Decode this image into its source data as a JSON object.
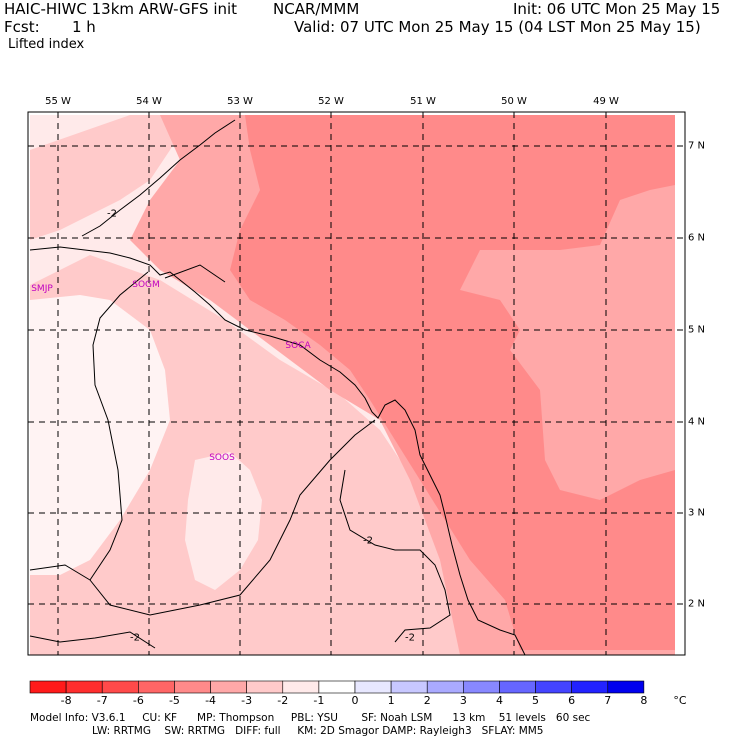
{
  "header": {
    "title": "HAIC-HIWC 13km ARW-GFS init",
    "org": "NCAR/MMM",
    "init": "Init: 06 UTC Mon 25 May 15",
    "fcst_label": "Fcst:",
    "fcst_value": "1 h",
    "valid": "Valid: 07 UTC Mon 25 May 15 (04 LST Mon 25 May 15)",
    "field": "Lifted index"
  },
  "map": {
    "lon_labels": [
      "55 W",
      "54 W",
      "53 W",
      "52 W",
      "51 W",
      "50 W",
      "49 W"
    ],
    "lat_labels": [
      "7 N",
      "6 N",
      "5 N",
      "4 N",
      "3 N",
      "2 N"
    ],
    "stations": [
      "SMJP",
      "SOGM",
      "SOCA",
      "SOOS"
    ],
    "contour_labels": [
      "-2",
      "-2",
      "-2",
      "-2"
    ],
    "colors": {
      "li_minus4": "#ff8a8a",
      "li_minus3": "#ffa8a8",
      "li_minus2": "#ffcaca",
      "li_minus1": "#ffeaea",
      "station_text": "#c000c0"
    }
  },
  "colorbar": {
    "labels": [
      "-8",
      "-7",
      "-6",
      "-5",
      "-4",
      "-3",
      "-2",
      "-1",
      "0",
      "1",
      "2",
      "3",
      "4",
      "5",
      "6",
      "7",
      "8"
    ],
    "unit": "°C",
    "colors": [
      "#ff1a1a",
      "#ff2e2e",
      "#ff4a4a",
      "#ff6666",
      "#ff8a8a",
      "#ffa8a8",
      "#ffcaca",
      "#ffeaea",
      "#ffffff",
      "#e8e8ff",
      "#c8c8ff",
      "#aaaaff",
      "#8888ff",
      "#6666ff",
      "#4444ff",
      "#2222ff",
      "#0000ee"
    ]
  },
  "footer": {
    "line1": "Model Info: V3.6.1     CU: KF      MP: Thompson     PBL: YSU       SF: Noah LSM      13 km    51 levels   60 sec",
    "line2": "LW: RRTMG    SW: RRTMG   DIFF: full     KM: 2D Smagor DAMP: Rayleigh3   SFLAY: MM5"
  }
}
